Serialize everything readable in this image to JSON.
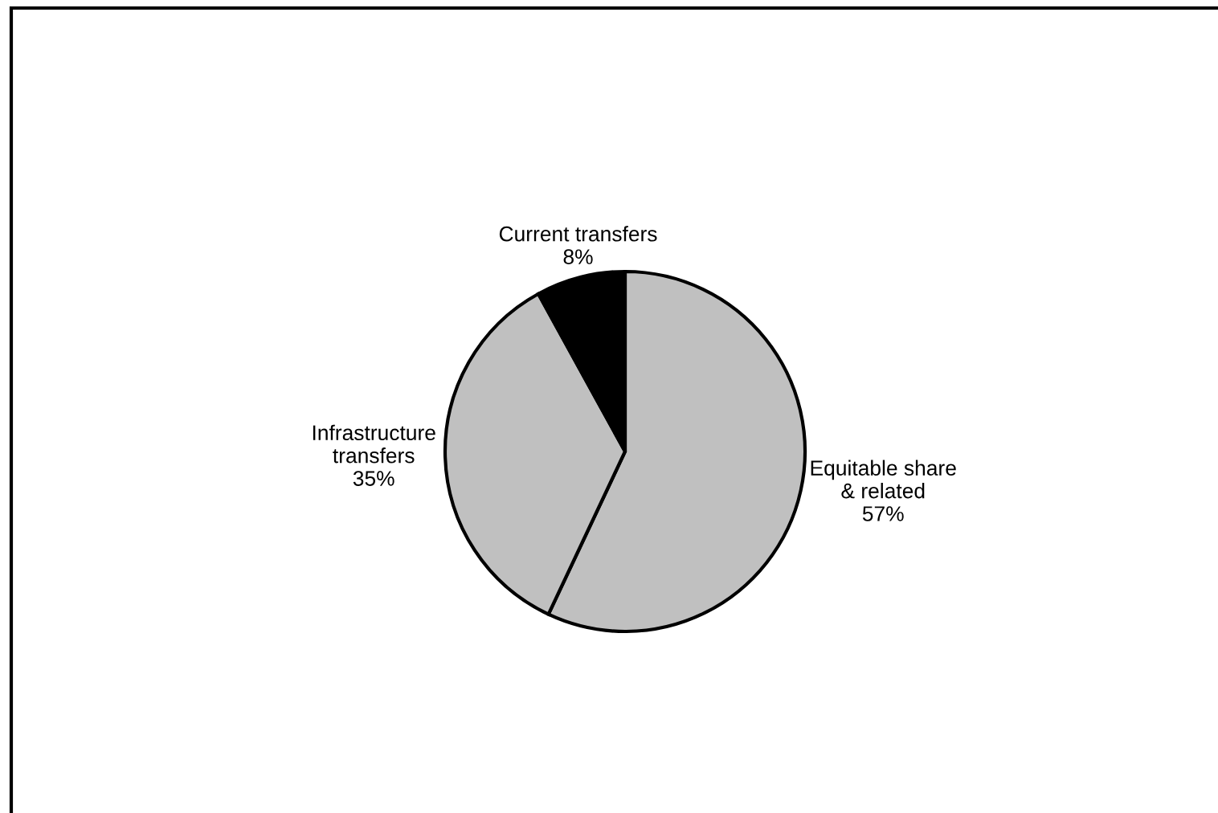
{
  "chart_data": {
    "type": "pie",
    "categories": [
      "Equitable share\n& related",
      "Infrastructure\ntransfers",
      "Current transfers"
    ],
    "values": [
      57,
      35,
      8
    ],
    "value_labels": [
      "57%",
      "35%",
      "8%"
    ],
    "colors": [
      "#c0c0c0",
      "#c0c0c0",
      "#000000"
    ]
  }
}
